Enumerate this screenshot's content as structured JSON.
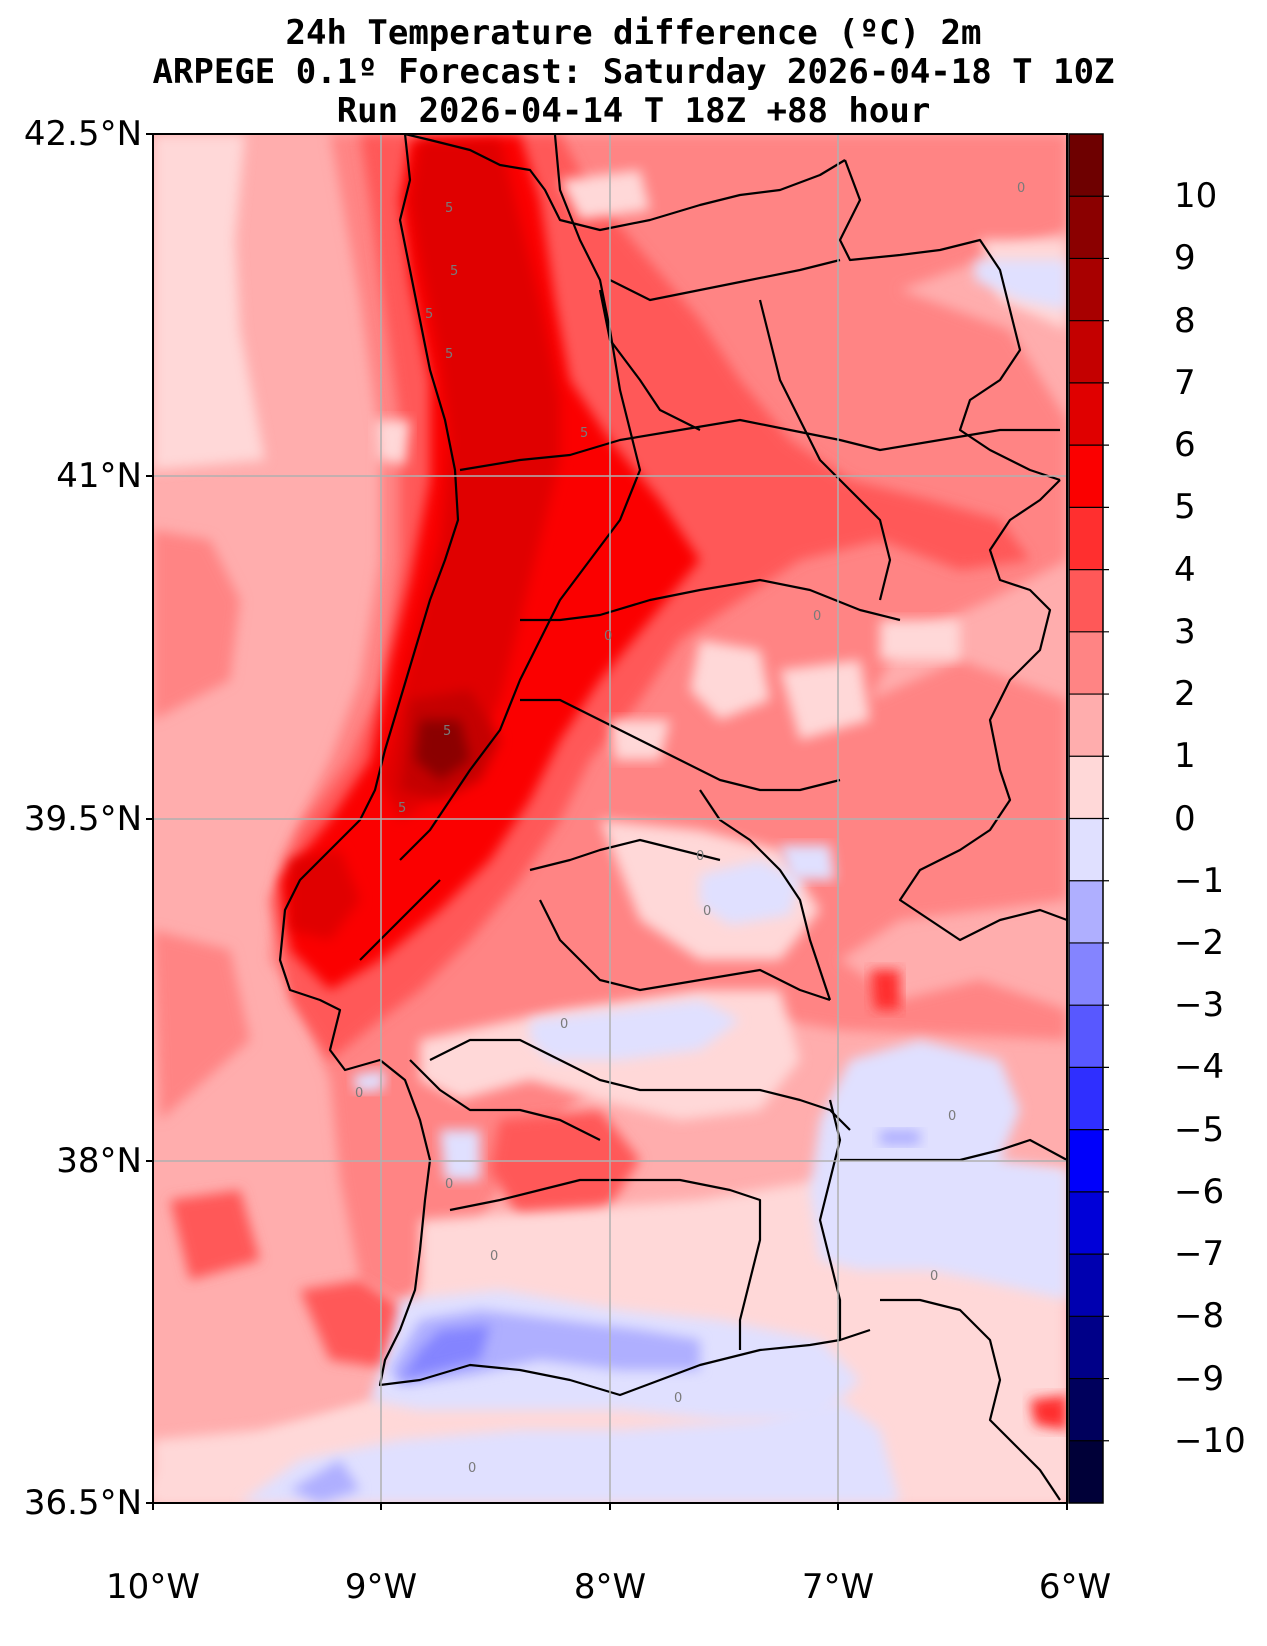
{
  "title": {
    "line1": "24h Temperature difference (ºC) 2m",
    "line2": "ARPEGE 0.1º Forecast: Saturday 2026-04-18 T 10Z",
    "line3": "Run 2026-04-14 T 18Z +88 hour"
  },
  "map": {
    "region": "Portugal",
    "lon_range": [
      -10,
      -6
    ],
    "lat_range": [
      36.5,
      42.5
    ],
    "lat_ticks": [
      "42.5°N",
      "41°N",
      "39.5°N",
      "38°N",
      "36.5°N"
    ],
    "lon_ticks": [
      "10°W",
      "9°W",
      "8°W",
      "7°W",
      "6°W"
    ],
    "contour_labels": [
      "5",
      "5",
      "5",
      "5",
      "5",
      "5",
      "5",
      "0",
      "0",
      "0",
      "0",
      "0",
      "0",
      "0",
      "0",
      "0",
      "0",
      "0",
      "0",
      "0"
    ]
  },
  "colorbar": {
    "ticks": [
      "10",
      "9",
      "8",
      "7",
      "6",
      "5",
      "4",
      "3",
      "2",
      "1",
      "0",
      "−1",
      "−2",
      "−3",
      "−4",
      "−5",
      "−6",
      "−7",
      "−8",
      "−9",
      "−10"
    ],
    "colors": [
      "#6e0000",
      "#8b0000",
      "#a80000",
      "#c40000",
      "#e00000",
      "#fb0000",
      "#ff2f2f",
      "#ff5858",
      "#ff8484",
      "#ffadad",
      "#ffd8d8",
      "#e0e0ff",
      "#afafff",
      "#8484ff",
      "#5858ff",
      "#2f2fff",
      "#0000fb",
      "#0000d8",
      "#0000b0",
      "#000088",
      "#00005c",
      "#000038"
    ]
  }
}
